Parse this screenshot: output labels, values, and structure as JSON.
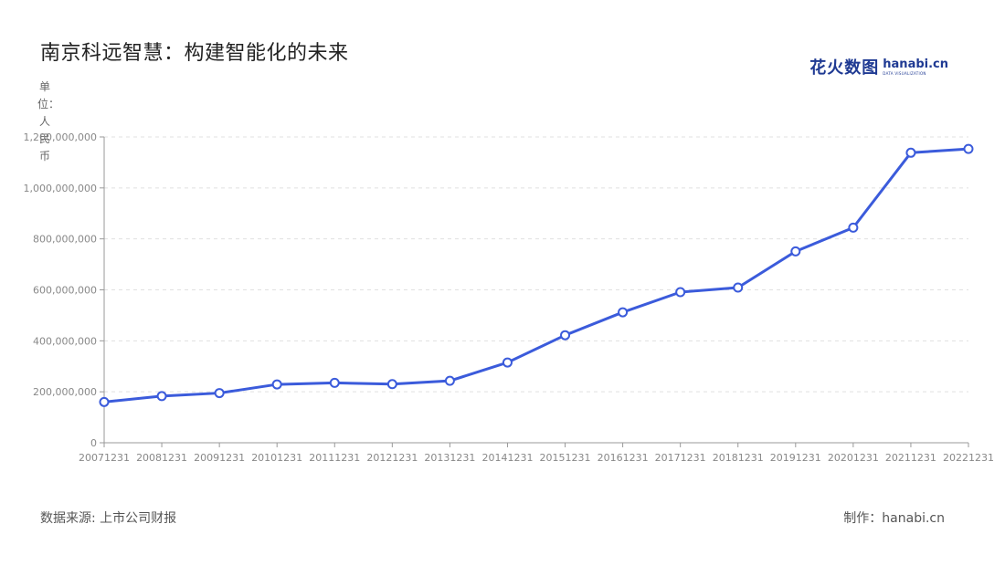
{
  "title": "南京科远智慧：构建智能化的未来",
  "logo": {
    "cn": "花火数图",
    "en": "hanabi.cn",
    "sub": "DATA VISUALIZATION"
  },
  "unit_label": "单位：人民币",
  "footer": {
    "source": "数据来源: 上市公司财报",
    "credit": "制作：hanabi.cn"
  },
  "colors": {
    "line": "#3b5bdb",
    "marker_fill": "#ffffff",
    "grid": "#e0e0e0",
    "axis": "#999999"
  },
  "chart_data": {
    "type": "line",
    "categories": [
      "20071231",
      "20081231",
      "20091231",
      "20101231",
      "20111231",
      "20121231",
      "20131231",
      "20141231",
      "20151231",
      "20161231",
      "20171231",
      "20181231",
      "20191231",
      "20201231",
      "20211231",
      "20221231"
    ],
    "series": [
      {
        "values": [
          160000000,
          183000000,
          195000000,
          229000000,
          235000000,
          230000000,
          243000000,
          315000000,
          422000000,
          512000000,
          591000000,
          609000000,
          751000000,
          844000000,
          1138000000,
          1153000000
        ]
      }
    ],
    "ylim": [
      0,
      1200000000
    ],
    "yticks": [
      0,
      200000000,
      400000000,
      600000000,
      800000000,
      1000000000,
      1200000000
    ],
    "ytick_labels": [
      "0",
      "200,000,000",
      "400,000,000",
      "600,000,000",
      "800,000,000",
      "1,000,000,000",
      "1,200,000,000"
    ],
    "grid": true,
    "legend": false
  }
}
